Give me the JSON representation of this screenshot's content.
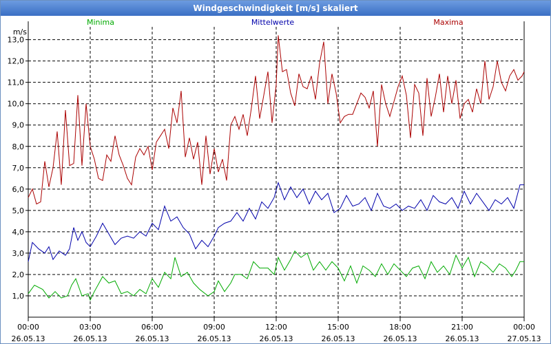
{
  "window": {
    "title": "Windgeschwindigkeit [m/s] skaliert"
  },
  "chart_data": {
    "type": "line",
    "title": "Windgeschwindigkeit [m/s] skaliert",
    "ylabel": "m/s",
    "xlabel": "",
    "ylim": [
      0.0,
      13.6
    ],
    "xlim": [
      0,
      24
    ],
    "grid": true,
    "yticks": [
      1,
      2,
      3,
      4,
      5,
      6,
      7,
      8,
      9,
      10,
      11,
      12,
      13
    ],
    "ytick_labels": [
      "1,0",
      "2,0",
      "3,0",
      "4,0",
      "5,0",
      "6,0",
      "7,0",
      "8,0",
      "9,0",
      "10,0",
      "11,0",
      "12,0",
      "13,0"
    ],
    "xticks": [
      {
        "time": "00:00",
        "date": "26.05.13"
      },
      {
        "time": "03:00",
        "date": "26.05.13"
      },
      {
        "time": "06:00",
        "date": "26.05.13"
      },
      {
        "time": "09:00",
        "date": "26.05.13"
      },
      {
        "time": "12:00",
        "date": "26.05.13"
      },
      {
        "time": "15:00",
        "date": "26.05.13"
      },
      {
        "time": "18:00",
        "date": "26.05.13"
      },
      {
        "time": "21:00",
        "date": "26.05.13"
      },
      {
        "time": "00:00",
        "date": "27.05.13"
      }
    ],
    "series": [
      {
        "name": "Minima",
        "color": "#00aa00",
        "points": [
          [
            0,
            1.1
          ],
          [
            0.3,
            1.5
          ],
          [
            0.7,
            1.3
          ],
          [
            1.0,
            0.9
          ],
          [
            1.3,
            1.2
          ],
          [
            1.6,
            0.9
          ],
          [
            1.9,
            1.0
          ],
          [
            2.1,
            1.5
          ],
          [
            2.3,
            1.8
          ],
          [
            2.6,
            1.0
          ],
          [
            2.9,
            1.1
          ],
          [
            3.0,
            0.8
          ],
          [
            3.2,
            1.2
          ],
          [
            3.6,
            1.9
          ],
          [
            3.9,
            1.6
          ],
          [
            4.2,
            1.7
          ],
          [
            4.5,
            1.1
          ],
          [
            4.8,
            1.2
          ],
          [
            5.1,
            1.0
          ],
          [
            5.4,
            1.3
          ],
          [
            5.7,
            1.1
          ],
          [
            6.0,
            1.8
          ],
          [
            6.3,
            1.4
          ],
          [
            6.6,
            2.1
          ],
          [
            6.9,
            1.8
          ],
          [
            7.1,
            2.8
          ],
          [
            7.4,
            1.9
          ],
          [
            7.7,
            2.1
          ],
          [
            8.0,
            1.6
          ],
          [
            8.3,
            1.3
          ],
          [
            8.7,
            1.0
          ],
          [
            9.0,
            1.2
          ],
          [
            9.2,
            1.7
          ],
          [
            9.5,
            1.2
          ],
          [
            9.8,
            1.6
          ],
          [
            10.0,
            2.0
          ],
          [
            10.3,
            2.0
          ],
          [
            10.6,
            1.8
          ],
          [
            10.9,
            2.6
          ],
          [
            11.2,
            2.3
          ],
          [
            11.6,
            2.3
          ],
          [
            11.9,
            2.0
          ],
          [
            12.1,
            2.8
          ],
          [
            12.4,
            2.2
          ],
          [
            12.7,
            2.7
          ],
          [
            12.9,
            3.1
          ],
          [
            13.2,
            2.8
          ],
          [
            13.5,
            3.0
          ],
          [
            13.8,
            2.2
          ],
          [
            14.1,
            2.6
          ],
          [
            14.4,
            2.2
          ],
          [
            14.7,
            2.6
          ],
          [
            15.0,
            2.3
          ],
          [
            15.3,
            1.7
          ],
          [
            15.6,
            2.4
          ],
          [
            15.9,
            1.6
          ],
          [
            16.2,
            2.4
          ],
          [
            16.5,
            2.2
          ],
          [
            16.8,
            1.9
          ],
          [
            17.1,
            2.5
          ],
          [
            17.4,
            2.0
          ],
          [
            17.7,
            2.5
          ],
          [
            18.0,
            2.2
          ],
          [
            18.3,
            1.9
          ],
          [
            18.6,
            2.3
          ],
          [
            18.9,
            2.4
          ],
          [
            19.2,
            1.8
          ],
          [
            19.5,
            2.6
          ],
          [
            19.8,
            2.1
          ],
          [
            20.1,
            2.4
          ],
          [
            20.4,
            2.0
          ],
          [
            20.7,
            2.9
          ],
          [
            21.0,
            2.3
          ],
          [
            21.3,
            2.8
          ],
          [
            21.6,
            1.9
          ],
          [
            21.9,
            2.6
          ],
          [
            22.2,
            2.4
          ],
          [
            22.5,
            2.1
          ],
          [
            22.8,
            2.5
          ],
          [
            23.1,
            2.3
          ],
          [
            23.4,
            1.9
          ],
          [
            23.6,
            2.2
          ],
          [
            23.8,
            2.6
          ],
          [
            24.0,
            2.6
          ]
        ]
      },
      {
        "name": "Mittelwerte",
        "color": "#0000aa",
        "points": [
          [
            0,
            2.6
          ],
          [
            0.2,
            3.5
          ],
          [
            0.5,
            3.2
          ],
          [
            0.8,
            3.0
          ],
          [
            1.0,
            3.3
          ],
          [
            1.2,
            2.7
          ],
          [
            1.5,
            3.1
          ],
          [
            1.8,
            2.9
          ],
          [
            2.0,
            3.2
          ],
          [
            2.2,
            4.2
          ],
          [
            2.4,
            3.6
          ],
          [
            2.6,
            4.0
          ],
          [
            2.8,
            3.5
          ],
          [
            3.0,
            3.3
          ],
          [
            3.3,
            3.8
          ],
          [
            3.6,
            4.4
          ],
          [
            3.9,
            3.9
          ],
          [
            4.2,
            3.4
          ],
          [
            4.5,
            3.7
          ],
          [
            4.8,
            3.8
          ],
          [
            5.1,
            3.7
          ],
          [
            5.4,
            4.0
          ],
          [
            5.7,
            3.8
          ],
          [
            6.0,
            4.4
          ],
          [
            6.3,
            4.1
          ],
          [
            6.6,
            5.2
          ],
          [
            6.9,
            4.5
          ],
          [
            7.2,
            4.7
          ],
          [
            7.5,
            4.2
          ],
          [
            7.8,
            3.9
          ],
          [
            8.1,
            3.2
          ],
          [
            8.4,
            3.6
          ],
          [
            8.7,
            3.3
          ],
          [
            9.0,
            3.8
          ],
          [
            9.2,
            4.2
          ],
          [
            9.5,
            4.4
          ],
          [
            9.8,
            4.5
          ],
          [
            10.1,
            4.9
          ],
          [
            10.4,
            4.5
          ],
          [
            10.7,
            5.1
          ],
          [
            11.0,
            4.6
          ],
          [
            11.3,
            5.4
          ],
          [
            11.6,
            5.1
          ],
          [
            11.9,
            5.6
          ],
          [
            12.1,
            6.3
          ],
          [
            12.4,
            5.5
          ],
          [
            12.7,
            6.1
          ],
          [
            13.0,
            5.6
          ],
          [
            13.3,
            6.0
          ],
          [
            13.6,
            5.3
          ],
          [
            13.9,
            5.9
          ],
          [
            14.2,
            5.5
          ],
          [
            14.5,
            5.8
          ],
          [
            14.8,
            4.9
          ],
          [
            15.1,
            5.1
          ],
          [
            15.4,
            5.7
          ],
          [
            15.7,
            5.2
          ],
          [
            16.0,
            5.3
          ],
          [
            16.3,
            5.6
          ],
          [
            16.6,
            5.0
          ],
          [
            16.9,
            5.8
          ],
          [
            17.2,
            5.2
          ],
          [
            17.5,
            5.1
          ],
          [
            17.8,
            5.3
          ],
          [
            18.1,
            5.0
          ],
          [
            18.4,
            5.2
          ],
          [
            18.7,
            5.1
          ],
          [
            19.0,
            5.5
          ],
          [
            19.3,
            5.0
          ],
          [
            19.6,
            5.7
          ],
          [
            19.9,
            5.4
          ],
          [
            20.2,
            5.3
          ],
          [
            20.5,
            5.6
          ],
          [
            20.8,
            5.1
          ],
          [
            21.1,
            5.9
          ],
          [
            21.4,
            5.3
          ],
          [
            21.7,
            5.8
          ],
          [
            22.0,
            5.4
          ],
          [
            22.3,
            5.0
          ],
          [
            22.6,
            5.5
          ],
          [
            22.9,
            5.3
          ],
          [
            23.2,
            5.6
          ],
          [
            23.5,
            5.1
          ],
          [
            23.8,
            6.2
          ],
          [
            24.0,
            6.2
          ]
        ]
      },
      {
        "name": "Maxima",
        "color": "#aa0000",
        "points": [
          [
            0,
            5.6
          ],
          [
            0.2,
            6.0
          ],
          [
            0.4,
            5.3
          ],
          [
            0.6,
            5.4
          ],
          [
            0.8,
            7.3
          ],
          [
            1.0,
            6.1
          ],
          [
            1.2,
            7.0
          ],
          [
            1.4,
            8.7
          ],
          [
            1.6,
            6.2
          ],
          [
            1.8,
            9.7
          ],
          [
            2.0,
            7.1
          ],
          [
            2.2,
            7.2
          ],
          [
            2.4,
            10.4
          ],
          [
            2.6,
            7.1
          ],
          [
            2.8,
            10.0
          ],
          [
            3.0,
            8.0
          ],
          [
            3.2,
            7.4
          ],
          [
            3.4,
            6.5
          ],
          [
            3.6,
            6.4
          ],
          [
            3.8,
            7.6
          ],
          [
            4.0,
            7.3
          ],
          [
            4.2,
            8.5
          ],
          [
            4.4,
            7.6
          ],
          [
            4.6,
            7.1
          ],
          [
            4.8,
            6.5
          ],
          [
            5.0,
            6.2
          ],
          [
            5.2,
            7.5
          ],
          [
            5.4,
            7.9
          ],
          [
            5.6,
            7.6
          ],
          [
            5.8,
            8.0
          ],
          [
            6.0,
            6.9
          ],
          [
            6.2,
            8.2
          ],
          [
            6.4,
            8.5
          ],
          [
            6.6,
            8.8
          ],
          [
            6.8,
            7.9
          ],
          [
            7.0,
            9.8
          ],
          [
            7.2,
            9.1
          ],
          [
            7.4,
            10.6
          ],
          [
            7.6,
            7.5
          ],
          [
            7.8,
            8.4
          ],
          [
            8.0,
            7.4
          ],
          [
            8.2,
            8.2
          ],
          [
            8.4,
            6.2
          ],
          [
            8.6,
            8.5
          ],
          [
            8.8,
            6.7
          ],
          [
            9.0,
            7.9
          ],
          [
            9.2,
            6.8
          ],
          [
            9.4,
            7.4
          ],
          [
            9.6,
            6.4
          ],
          [
            9.8,
            9.0
          ],
          [
            10.0,
            9.4
          ],
          [
            10.2,
            8.8
          ],
          [
            10.4,
            9.5
          ],
          [
            10.6,
            8.5
          ],
          [
            10.8,
            9.8
          ],
          [
            11.0,
            11.3
          ],
          [
            11.2,
            9.3
          ],
          [
            11.4,
            10.4
          ],
          [
            11.6,
            11.5
          ],
          [
            11.8,
            9.1
          ],
          [
            12.0,
            10.9
          ],
          [
            12.1,
            13.2
          ],
          [
            12.3,
            11.5
          ],
          [
            12.5,
            11.6
          ],
          [
            12.7,
            10.5
          ],
          [
            12.9,
            9.9
          ],
          [
            13.1,
            11.4
          ],
          [
            13.3,
            10.8
          ],
          [
            13.5,
            10.7
          ],
          [
            13.7,
            11.3
          ],
          [
            13.9,
            10.2
          ],
          [
            14.1,
            11.9
          ],
          [
            14.3,
            12.9
          ],
          [
            14.5,
            10.0
          ],
          [
            14.7,
            11.4
          ],
          [
            14.9,
            10.5
          ],
          [
            15.1,
            9.1
          ],
          [
            15.3,
            9.4
          ],
          [
            15.5,
            9.5
          ],
          [
            15.7,
            9.5
          ],
          [
            15.9,
            10.0
          ],
          [
            16.1,
            10.5
          ],
          [
            16.3,
            10.3
          ],
          [
            16.5,
            9.8
          ],
          [
            16.7,
            10.6
          ],
          [
            16.9,
            8.0
          ],
          [
            17.1,
            10.9
          ],
          [
            17.3,
            10.0
          ],
          [
            17.5,
            9.4
          ],
          [
            17.7,
            10.1
          ],
          [
            17.9,
            10.8
          ],
          [
            18.1,
            11.3
          ],
          [
            18.3,
            10.4
          ],
          [
            18.5,
            8.4
          ],
          [
            18.7,
            10.9
          ],
          [
            18.9,
            10.5
          ],
          [
            19.1,
            8.5
          ],
          [
            19.3,
            11.2
          ],
          [
            19.5,
            9.4
          ],
          [
            19.7,
            10.3
          ],
          [
            19.9,
            11.4
          ],
          [
            20.1,
            9.6
          ],
          [
            20.3,
            11.3
          ],
          [
            20.5,
            10.0
          ],
          [
            20.7,
            11.1
          ],
          [
            20.9,
            9.3
          ],
          [
            21.1,
            10.0
          ],
          [
            21.3,
            10.2
          ],
          [
            21.5,
            9.6
          ],
          [
            21.7,
            10.7
          ],
          [
            21.9,
            10.0
          ],
          [
            22.1,
            12.0
          ],
          [
            22.3,
            10.2
          ],
          [
            22.5,
            10.8
          ],
          [
            22.7,
            12.0
          ],
          [
            22.9,
            11.0
          ],
          [
            23.1,
            10.6
          ],
          [
            23.3,
            11.3
          ],
          [
            23.5,
            11.6
          ],
          [
            23.7,
            11.1
          ],
          [
            23.9,
            11.3
          ],
          [
            24.0,
            11.5
          ]
        ]
      }
    ]
  }
}
